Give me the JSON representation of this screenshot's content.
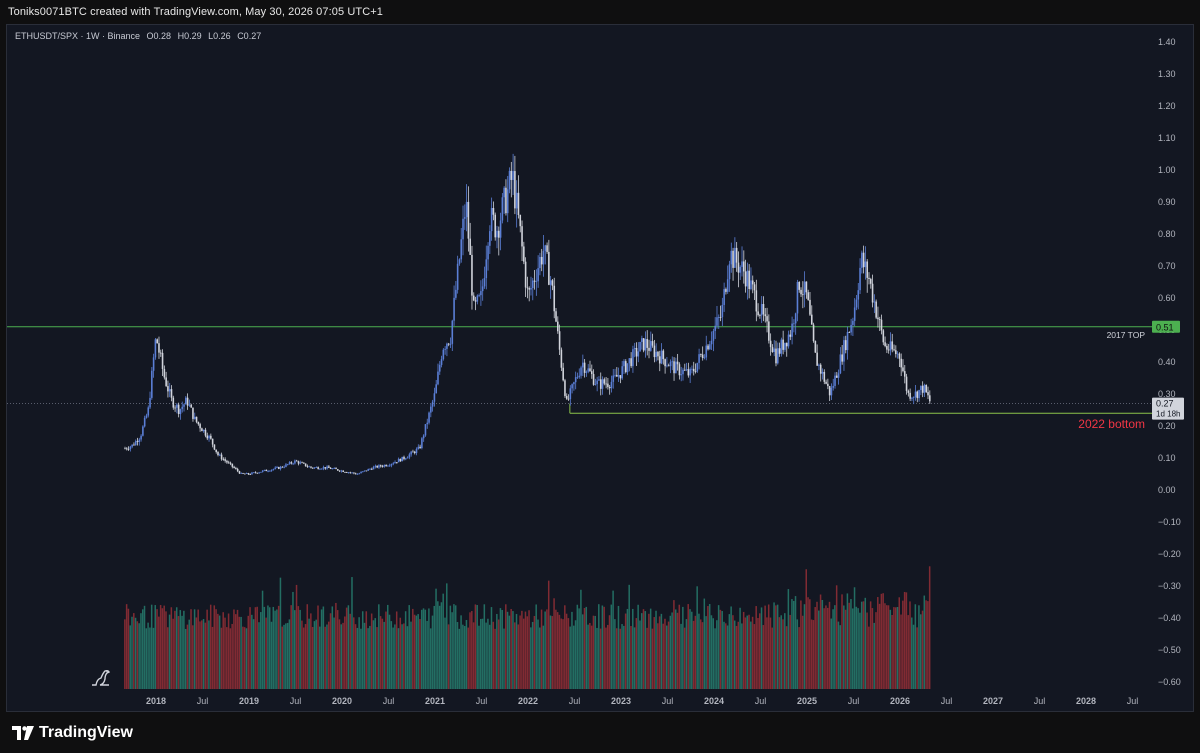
{
  "header": {
    "credit": "Toniks0071BTC created with TradingView.com, May 30, 2026 07:05 UTC+1"
  },
  "legend": {
    "symbol": "ETHUSDT/SPX · 1W · Binance",
    "open": "O0.28",
    "high": "H0.29",
    "low": "L0.26",
    "close": "C0.27"
  },
  "footer": {
    "brand": "TradingView"
  },
  "colors": {
    "background": "#131722",
    "up": "#5b7fd6",
    "down": "#d1d4dc",
    "vol_up": "#26786a",
    "vol_down": "#8e2d35",
    "level_line": "#4caf50",
    "annotation": "#f23645"
  },
  "chart_data": {
    "type": "candlestick",
    "title": "",
    "xlabel": "",
    "ylabel": "",
    "ylim": [
      -0.65,
      1.45
    ],
    "y_ticks": [
      "1.40",
      "1.30",
      "1.20",
      "1.10",
      "1.00",
      "0.90",
      "0.80",
      "0.70",
      "0.60",
      "0.50",
      "0.40",
      "0.30",
      "0.20",
      "0.10",
      "0.00",
      "−0.10",
      "−0.20",
      "−0.30",
      "−0.40",
      "−0.50",
      "−0.60"
    ],
    "x_ticks": [
      "2018",
      "Jul",
      "2019",
      "Jul",
      "2020",
      "Jul",
      "2021",
      "Jul",
      "2022",
      "Jul",
      "2023",
      "Jul",
      "2024",
      "Jul",
      "2025",
      "Jul",
      "2026",
      "Jul",
      "2027",
      "Jul",
      "2028",
      "Jul"
    ],
    "series": [
      {
        "name": "",
        "approx_close": [
          [
            "2017-09",
            0.13
          ],
          [
            "2017-10",
            0.14
          ],
          [
            "2017-11",
            0.17
          ],
          [
            "2017-12",
            0.25
          ],
          [
            "2018-01",
            0.48
          ],
          [
            "2018-02",
            0.36
          ],
          [
            "2018-03",
            0.28
          ],
          [
            "2018-04",
            0.25
          ],
          [
            "2018-05",
            0.28
          ],
          [
            "2018-06",
            0.22
          ],
          [
            "2018-07",
            0.19
          ],
          [
            "2018-08",
            0.16
          ],
          [
            "2018-09",
            0.11
          ],
          [
            "2018-10",
            0.09
          ],
          [
            "2018-11",
            0.07
          ],
          [
            "2018-12",
            0.05
          ],
          [
            "2019-01",
            0.05
          ],
          [
            "2019-03",
            0.06
          ],
          [
            "2019-05",
            0.07
          ],
          [
            "2019-07",
            0.09
          ],
          [
            "2019-09",
            0.07
          ],
          [
            "2019-11",
            0.07
          ],
          [
            "2020-01",
            0.06
          ],
          [
            "2020-03",
            0.05
          ],
          [
            "2020-05",
            0.07
          ],
          [
            "2020-07",
            0.08
          ],
          [
            "2020-09",
            0.1
          ],
          [
            "2020-11",
            0.13
          ],
          [
            "2021-01",
            0.3
          ],
          [
            "2021-02",
            0.45
          ],
          [
            "2021-03",
            0.48
          ],
          [
            "2021-05",
            0.9
          ],
          [
            "2021-06",
            0.56
          ],
          [
            "2021-07",
            0.6
          ],
          [
            "2021-08",
            0.85
          ],
          [
            "2021-09",
            0.82
          ],
          [
            "2021-11",
            0.98
          ],
          [
            "2021-12",
            0.8
          ],
          [
            "2022-01",
            0.6
          ],
          [
            "2022-02",
            0.68
          ],
          [
            "2022-03",
            0.75
          ],
          [
            "2022-04",
            0.65
          ],
          [
            "2022-05",
            0.45
          ],
          [
            "2022-06",
            0.27
          ],
          [
            "2022-08",
            0.4
          ],
          [
            "2022-10",
            0.33
          ],
          [
            "2022-12",
            0.34
          ],
          [
            "2023-02",
            0.4
          ],
          [
            "2023-04",
            0.46
          ],
          [
            "2023-06",
            0.42
          ],
          [
            "2023-08",
            0.38
          ],
          [
            "2023-10",
            0.36
          ],
          [
            "2023-12",
            0.45
          ],
          [
            "2024-02",
            0.55
          ],
          [
            "2024-03",
            0.74
          ],
          [
            "2024-05",
            0.68
          ],
          [
            "2024-07",
            0.56
          ],
          [
            "2024-09",
            0.42
          ],
          [
            "2024-11",
            0.5
          ],
          [
            "2024-12",
            0.65
          ],
          [
            "2025-01",
            0.6
          ],
          [
            "2025-02",
            0.42
          ],
          [
            "2025-04",
            0.3
          ],
          [
            "2025-05",
            0.38
          ],
          [
            "2025-07",
            0.55
          ],
          [
            "2025-08",
            0.72
          ],
          [
            "2025-09",
            0.66
          ],
          [
            "2025-11",
            0.45
          ],
          [
            "2026-01",
            0.42
          ],
          [
            "2026-02",
            0.3
          ],
          [
            "2026-03",
            0.3
          ],
          [
            "2026-04",
            0.32
          ],
          [
            "2026-05",
            0.27
          ]
        ]
      }
    ],
    "volume_note": "volume histogram shown at bottom in red/green",
    "levels": [
      {
        "label": "2017 TOP",
        "price": 0.51,
        "price_label": "0.51"
      },
      {
        "label": "2022 bottom",
        "price": 0.24,
        "price_label": "0.24"
      }
    ],
    "current": {
      "price_label": "0.27",
      "countdown": "1d 18h",
      "price": 0.27
    }
  }
}
